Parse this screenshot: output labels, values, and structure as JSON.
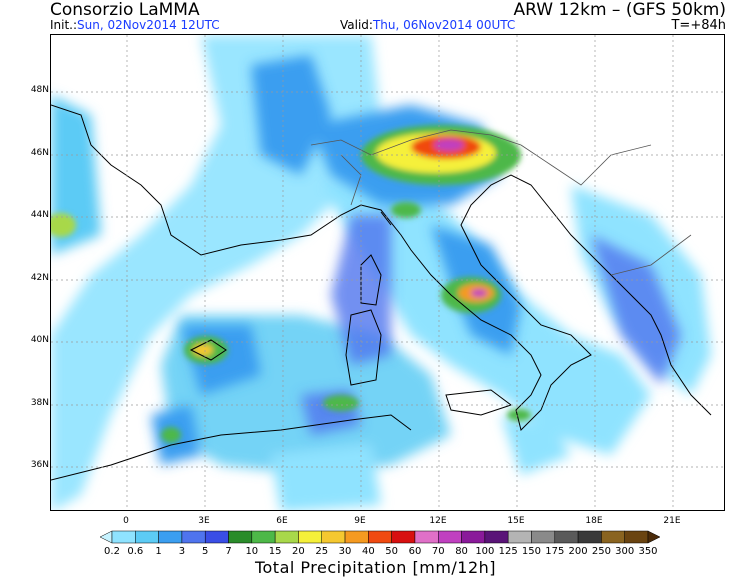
{
  "header": {
    "organization": "Consorzio LaMMA",
    "model": "ARW 12km  –  (GFS 50km)",
    "init_label": "Init.:",
    "init_value": "Sun, 02Nov2014 12UTC",
    "valid_label": "Valid:",
    "valid_value": "Thu, 06Nov2014 00UTC",
    "lead_time": "T=+84h"
  },
  "map": {
    "lat_labels": [
      "48N",
      "46N",
      "44N",
      "42N",
      "40N",
      "38N",
      "36N"
    ],
    "lon_labels": [
      "0",
      "3E",
      "6E",
      "9E",
      "12E",
      "15E",
      "18E",
      "21E"
    ]
  },
  "colorbar": {
    "title": "Total Precipitation [mm/12h]",
    "levels": [
      "0.2",
      "0.6",
      "1",
      "3",
      "5",
      "7",
      "10",
      "15",
      "20",
      "25",
      "30",
      "40",
      "50",
      "60",
      "70",
      "80",
      "100",
      "125",
      "150",
      "175",
      "200",
      "250",
      "300",
      "350"
    ],
    "colors": [
      "#c7f3ff",
      "#8fe3ff",
      "#5ccbf5",
      "#3b9ef0",
      "#4f74ee",
      "#3a4ee6",
      "#2a8c2a",
      "#4db848",
      "#a8d84a",
      "#f5f03a",
      "#f5c830",
      "#f59a20",
      "#f04a10",
      "#d81010",
      "#e070c8",
      "#c040c0",
      "#8a1a9a",
      "#5a1478",
      "#b4b4b4",
      "#8a8a8a",
      "#5a5a5a",
      "#3a3a3a",
      "#8a6420",
      "#6a4410",
      "#4a2a08"
    ]
  }
}
